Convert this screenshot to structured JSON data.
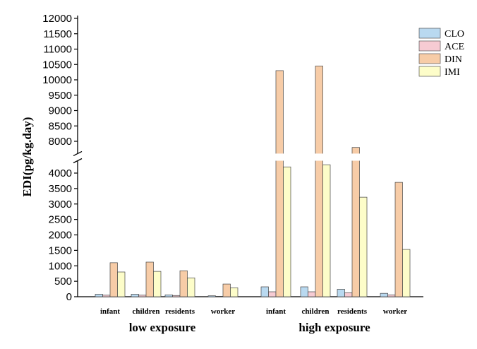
{
  "chart_data": {
    "type": "bar",
    "ylabel": "EDI(pg/kg.day)",
    "xlabel": "",
    "y_axis_break": [
      4400,
      7600
    ],
    "ylim": [
      0,
      12000
    ],
    "lower_ticks": [
      0,
      500,
      1000,
      1500,
      2000,
      2500,
      3000,
      3500,
      4000
    ],
    "upper_ticks": [
      8000,
      8500,
      9000,
      9500,
      10000,
      10500,
      11000,
      11500,
      12000
    ],
    "groups": [
      {
        "name": "low exposure",
        "categories": [
          "infant",
          "children",
          "residents",
          "worker"
        ]
      },
      {
        "name": "high exposure",
        "categories": [
          "infant",
          "children",
          "residents",
          "worker"
        ]
      }
    ],
    "series": [
      {
        "name": "CLO",
        "color": "#b9d9f0",
        "values": [
          80,
          80,
          60,
          30,
          320,
          320,
          240,
          110
        ]
      },
      {
        "name": "ACE",
        "color": "#f6cbd3",
        "values": [
          50,
          50,
          40,
          15,
          160,
          160,
          130,
          60
        ]
      },
      {
        "name": "DIN",
        "color": "#f7cca7",
        "values": [
          1100,
          1120,
          840,
          410,
          10300,
          10450,
          7800,
          3700
        ]
      },
      {
        "name": "IMI",
        "color": "#fdfdc9",
        "values": [
          800,
          820,
          610,
          290,
          4200,
          4270,
          3220,
          1530
        ]
      }
    ],
    "legend_position": "top-right",
    "grid": false
  }
}
